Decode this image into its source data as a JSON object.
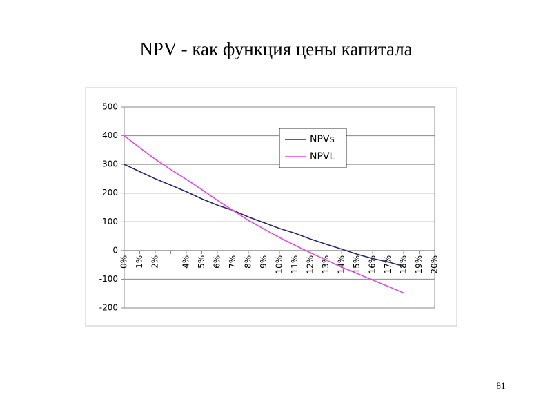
{
  "chart_data": {
    "type": "line",
    "title": "NPV - как функция цены капитала",
    "categories": [
      "0%",
      "1%",
      "2%",
      null,
      "4%",
      "5%",
      "6%",
      "7%",
      "8%",
      "9%",
      "10%",
      "11%",
      "12%",
      "13%",
      "14%",
      "15%",
      "16%",
      "17%",
      "18%",
      "19%",
      "20%"
    ],
    "series": [
      {
        "name": "NPVs",
        "color": "#26246e",
        "values": [
          300,
          275,
          250,
          228,
          205,
          180,
          158,
          140,
          117,
          97,
          77,
          60,
          40,
          22,
          5,
          -13,
          -28,
          -40,
          -55,
          null,
          null
        ]
      },
      {
        "name": "NPVL",
        "color": "#e844e8",
        "values": [
          400,
          358,
          318,
          282,
          248,
          212,
          175,
          140,
          105,
          75,
          45,
          18,
          -8,
          -33,
          -58,
          -80,
          -103,
          -125,
          -148,
          null,
          null
        ]
      }
    ],
    "ylim": [
      -200,
      500
    ],
    "yticks": [
      -200,
      -100,
      0,
      100,
      200,
      300,
      400,
      500
    ],
    "grid": true,
    "legend": "upper-right"
  },
  "page_number": "81"
}
